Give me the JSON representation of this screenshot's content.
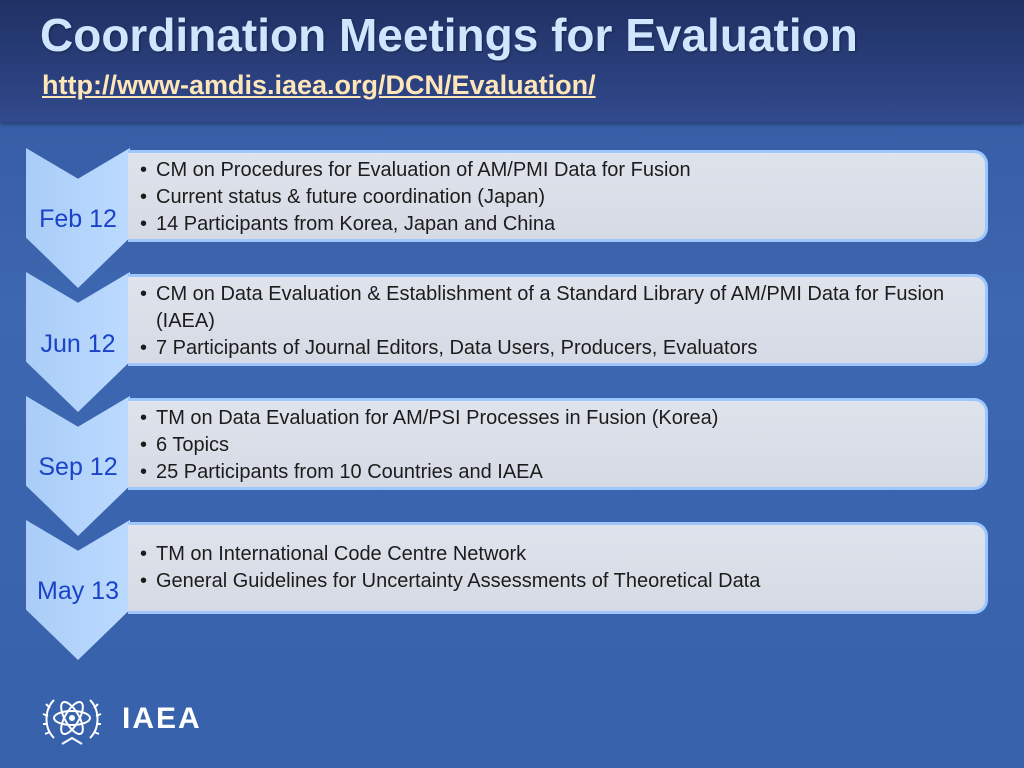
{
  "slide": {
    "title": "Coordination Meetings for Evaluation",
    "url": "http://www-amdis.iaea.org/DCN/Evaluation/"
  },
  "meetings": [
    {
      "date": "Feb 12",
      "items": [
        "CM on Procedures for Evaluation of AM/PMI Data for Fusion",
        "Current status & future coordination (Japan)",
        "14 Participants from Korea, Japan and China"
      ]
    },
    {
      "date": "Jun 12",
      "items": [
        "CM on Data Evaluation & Establishment of a Standard Library of AM/PMI Data for Fusion (IAEA)",
        "7 Participants of Journal Editors, Data Users, Producers, Evaluators"
      ]
    },
    {
      "date": "Sep 12",
      "items": [
        "TM on Data Evaluation for AM/PSI Processes in Fusion (Korea)",
        "6 Topics",
        "25 Participants from 10 Countries and IAEA"
      ]
    },
    {
      "date": "May 13",
      "items": [
        "TM on International Code Centre Network",
        "General Guidelines for Uncertainty Assessments of Theoretical Data"
      ]
    }
  ],
  "footer": {
    "logo_text": "IAEA",
    "logo_icon": "iaea-atom-wreath-icon"
  },
  "colors": {
    "title": "#cfe6ff",
    "url": "#ffe6b8",
    "date_text": "#1a43c8",
    "chevron": "#b3d4fb",
    "box_border": "#9ec6ff"
  }
}
